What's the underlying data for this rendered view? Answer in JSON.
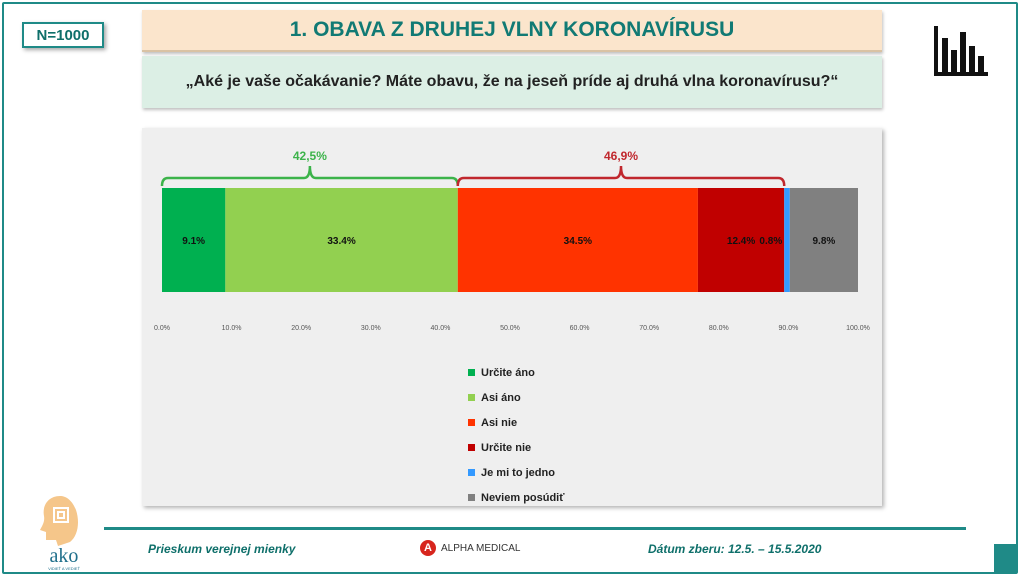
{
  "badge": "N=1000",
  "title": "1. OBAVA Z DRUHEJ VLNY KORONAVÍRUSU",
  "question": "„Aké je vaše očakávanie? Máte obavu, že na jeseň príde aj druhá vlna koronavírusu?“",
  "footer": {
    "left": "Prieskum verejnej mienky",
    "right": "Dátum zberu: 12.5. – 15.5.2020",
    "sponsor": "ALPHA MEDICAL",
    "sponsor_mark": "A",
    "logo_text": "ako",
    "logo_tagline": "VIDIEŤ A VEDIEŤ"
  },
  "icons": {
    "chart": "bar-chart-icon",
    "brand": "ako-logo",
    "sponsor": "alpha-medical-logo"
  },
  "chart_data": {
    "type": "bar",
    "orientation": "horizontal-stacked-100",
    "series": [
      {
        "name": "Určite áno",
        "value": 9.1,
        "label": "9.1%",
        "color": "#00b050"
      },
      {
        "name": "Asi áno",
        "value": 33.4,
        "label": "33.4%",
        "color": "#92d050"
      },
      {
        "name": "Asi nie",
        "value": 34.5,
        "label": "34.5%",
        "color": "#ff3300"
      },
      {
        "name": "Určite nie",
        "value": 12.4,
        "label": "12.4%",
        "color": "#c00000"
      },
      {
        "name": "Je mi to jedno",
        "value": 0.8,
        "label": "0.8%",
        "color": "#3399ff"
      },
      {
        "name": "Neviem posúdiť",
        "value": 9.8,
        "label": "9.8%",
        "color": "#808080"
      }
    ],
    "xlim": [
      0,
      100
    ],
    "ticks": [
      "0.0%",
      "10.0%",
      "20.0%",
      "30.0%",
      "40.0%",
      "50.0%",
      "60.0%",
      "70.0%",
      "80.0%",
      "90.0%",
      "100.0%"
    ],
    "annotations": [
      {
        "label": "42,5%",
        "from": 0,
        "to": 42.5,
        "color": "#3cb34a"
      },
      {
        "label": "46,9%",
        "from": 42.5,
        "to": 89.4,
        "color": "#c0272d"
      }
    ],
    "legend_position": "bottom-center",
    "grid": false
  }
}
